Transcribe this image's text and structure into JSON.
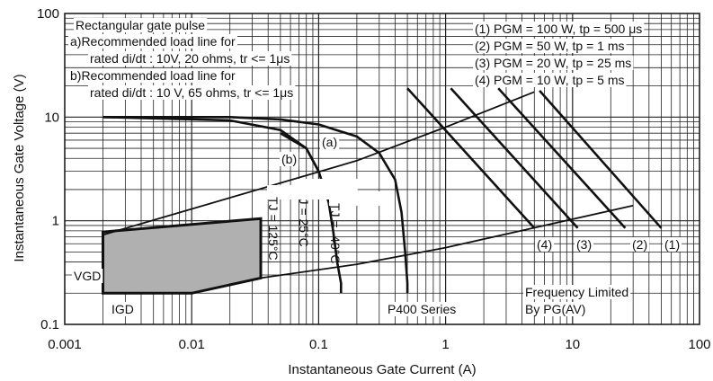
{
  "chart_data": {
    "type": "line",
    "xlabel": "Instantaneous Gate Current (A)",
    "ylabel": "Instantaneous Gate Voltage (V)",
    "xscale": "log",
    "yscale": "log",
    "xlim": [
      0.001,
      100
    ],
    "ylim": [
      0.1,
      100
    ],
    "grid": "on",
    "x_tick_labels": [
      "0.001",
      "0.01",
      "0.1",
      "1",
      "10",
      "100"
    ],
    "y_tick_labels": [
      "0.1",
      "1",
      "10",
      "100"
    ],
    "header_notes": [
      "Rectangular gate pulse",
      "a)Recommended load line for",
      "rated di/dt : 10V, 20 ohms, tr <= 1μs",
      "b)Recommended load line for",
      "rated di/dt : 10 V, 65 ohms, tr <= 1μs"
    ],
    "legend": [
      {
        "label": "(1) PGM = 100 W, tp = 500  μs",
        "tag": "(1)"
      },
      {
        "label": "(2) PGM = 50 W, tp = 1 ms",
        "tag": "(2)"
      },
      {
        "label": "(3) PGM = 20 W, tp = 25 ms",
        "tag": "(3)"
      },
      {
        "label": "(4) PGM = 10 W, tp = 5 ms",
        "tag": "(4)"
      }
    ],
    "power_limit_lines": [
      {
        "tag": "(1)",
        "x": [
          5.5,
          50
        ],
        "y": [
          18,
          0.85
        ]
      },
      {
        "tag": "(2)",
        "x": [
          2.6,
          26
        ],
        "y": [
          19,
          0.85
        ]
      },
      {
        "tag": "(3)",
        "x": [
          1.1,
          11
        ],
        "y": [
          19,
          0.85
        ]
      },
      {
        "tag": "(4)",
        "x": [
          0.5,
          5
        ],
        "y": [
          19,
          0.85
        ]
      }
    ],
    "load_lines": [
      {
        "tag": "(a)",
        "x": [
          0.002,
          0.2,
          1.0,
          5.0
        ],
        "y": [
          0.73,
          3.8,
          8.0,
          17.5
        ]
      },
      {
        "tag": "(b)",
        "x": [
          0.035,
          0.2,
          1.0,
          30.0
        ],
        "y": [
          0.28,
          0.38,
          0.55,
          1.4
        ]
      }
    ],
    "characteristic_curves": [
      {
        "label": "TJ = -40°C",
        "x": [
          0.002,
          0.02,
          0.05,
          0.1,
          0.2,
          0.3,
          0.4,
          0.45,
          0.48,
          0.5,
          0.5
        ],
        "y": [
          10,
          10,
          9.5,
          8.5,
          6.5,
          4.5,
          2.5,
          1.2,
          0.5,
          0.25,
          0.2
        ]
      },
      {
        "label": "TJ = 25°C",
        "x": [
          0.05,
          0.08,
          0.1,
          0.12,
          0.13,
          0.14,
          0.15,
          0.15
        ],
        "y": [
          7,
          5,
          3,
          1.5,
          0.8,
          0.4,
          0.25,
          0.2
        ]
      },
      {
        "label": "TJ = 125°C",
        "x": [
          0.002,
          0.02,
          0.05,
          0.08,
          0.1
        ],
        "y": [
          10,
          9.3,
          7.5,
          5,
          3
        ]
      }
    ],
    "gate_region": {
      "x": [
        0.002,
        0.002,
        0.035,
        0.035,
        0.01,
        0.002
      ],
      "y": [
        0.2,
        0.78,
        1.05,
        0.28,
        0.2,
        0.2
      ]
    },
    "annotations": {
      "label_a": "(a)",
      "label_b": "(b)",
      "tj_neg40": "TJ = -40°C",
      "tj_25": "TJ = 25°C",
      "tj_125": "TJ = 125°C",
      "vgd": "VGD",
      "igd": "IGD",
      "series": "P400 Series",
      "freq1": "Frequency Limited",
      "freq2": "By PG(AV)"
    }
  }
}
